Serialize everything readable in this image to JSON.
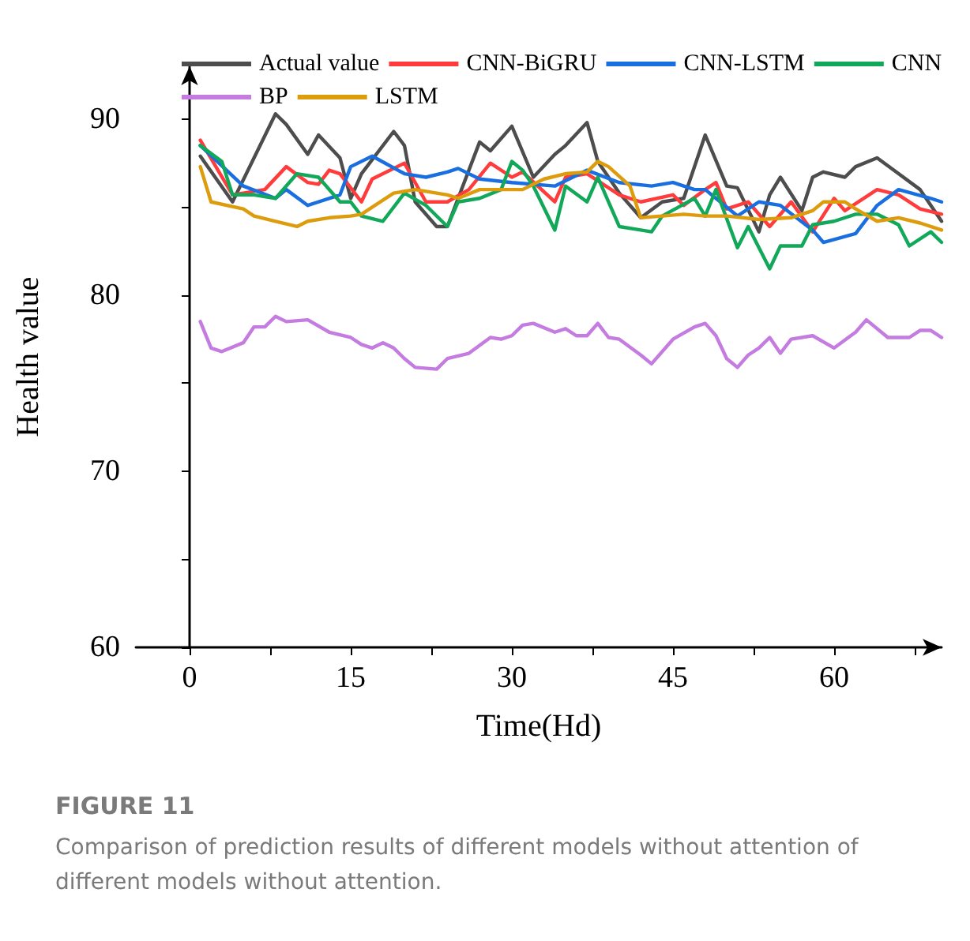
{
  "chart_data": {
    "type": "line",
    "title": "FIGURE 11",
    "subtitle": "Comparison of prediction results of different models without attention of different models without attention.",
    "xlabel": "Time(Hd)",
    "ylabel": "Health value",
    "xlim": [
      -5,
      70
    ],
    "ylim": [
      60,
      93
    ],
    "xticks": [
      0,
      {
        "value": 7.5,
        "label": null
      },
      15,
      {
        "value": 22.5,
        "label": null
      },
      30,
      {
        "value": 37.5,
        "label": null
      },
      45,
      {
        "value": 52.5,
        "label": null
      },
      60,
      {
        "value": 67.5,
        "label": null
      }
    ],
    "yticks": [
      60,
      {
        "value": 65,
        "label": null
      },
      70,
      {
        "value": 75,
        "label": null
      },
      80,
      {
        "value": 85,
        "label": null
      },
      90
    ],
    "grid": false,
    "legend": "top",
    "marker": "none",
    "line_style": "solid",
    "series": [
      {
        "name": "Actual value",
        "color": "#4d4d4d",
        "x": [
          1,
          4,
          8,
          9,
          11,
          12,
          14,
          15,
          16,
          19,
          20,
          21,
          23,
          24,
          27,
          28,
          30,
          32,
          34,
          35,
          37,
          38,
          40,
          42,
          44,
          46,
          48,
          50,
          51,
          53,
          54,
          55,
          57,
          58,
          59,
          61,
          62,
          64,
          66,
          68,
          70
        ],
        "values": [
          87.9,
          85.3,
          90.3,
          89.7,
          88.0,
          89.1,
          87.8,
          85.5,
          86.9,
          89.3,
          88.5,
          85.3,
          83.9,
          83.9,
          88.7,
          88.2,
          89.6,
          86.7,
          88.0,
          88.5,
          89.8,
          87.6,
          85.8,
          84.4,
          85.3,
          85.5,
          89.1,
          86.2,
          86.1,
          83.6,
          85.7,
          86.7,
          84.8,
          86.7,
          87.0,
          86.7,
          87.3,
          87.8,
          86.9,
          86.0,
          84.2
        ]
      },
      {
        "name": "CNN-BiGRU",
        "color": "#ff3b3b",
        "x": [
          1,
          4,
          7,
          9,
          11,
          12,
          13,
          14,
          16,
          17,
          20,
          21,
          22,
          24,
          26,
          28,
          30,
          31,
          34,
          35,
          37,
          40,
          42,
          45,
          46,
          48,
          49,
          50,
          52,
          54,
          56,
          58,
          60,
          61,
          64,
          66,
          68,
          70
        ],
        "values": [
          88.8,
          85.7,
          86.0,
          87.3,
          86.4,
          86.3,
          87.1,
          86.9,
          85.3,
          86.6,
          87.5,
          86.4,
          85.3,
          85.3,
          86.0,
          87.5,
          86.7,
          87.0,
          85.3,
          86.7,
          86.9,
          85.7,
          85.3,
          85.7,
          85.1,
          86.0,
          86.4,
          84.9,
          85.3,
          83.9,
          85.3,
          83.6,
          85.5,
          84.8,
          86.0,
          85.7,
          84.9,
          84.6
        ]
      },
      {
        "name": "CNN-LSTM",
        "color": "#1a6fe0",
        "x": [
          1,
          5,
          8,
          9,
          11,
          14,
          15,
          17,
          20,
          22,
          24,
          25,
          27,
          30,
          34,
          37,
          40,
          43,
          45,
          47,
          48,
          51,
          53,
          55,
          58,
          59,
          62,
          64,
          66,
          69,
          70
        ],
        "values": [
          88.5,
          86.2,
          85.5,
          86.0,
          85.1,
          85.7,
          87.3,
          87.9,
          86.9,
          86.7,
          87.0,
          87.2,
          86.6,
          86.4,
          86.2,
          87.1,
          86.4,
          86.2,
          86.4,
          86.0,
          86.0,
          84.5,
          85.3,
          85.1,
          83.7,
          83.0,
          83.5,
          85.1,
          86.0,
          85.5,
          85.3
        ]
      },
      {
        "name": "CNN",
        "color": "#12a85a",
        "x": [
          1,
          3,
          4,
          6,
          8,
          10,
          12,
          14,
          15,
          16,
          18,
          20,
          22,
          24,
          25,
          27,
          29,
          30,
          31,
          32,
          34,
          35,
          37,
          38,
          40,
          42,
          43,
          44,
          47,
          48,
          49,
          51,
          52,
          54,
          55,
          57,
          58,
          60,
          62,
          64,
          66,
          67,
          69,
          70
        ],
        "values": [
          88.5,
          87.6,
          85.7,
          85.7,
          85.5,
          86.9,
          86.7,
          85.3,
          85.3,
          84.5,
          84.2,
          85.8,
          85.1,
          83.9,
          85.3,
          85.5,
          86.0,
          87.6,
          87.1,
          86.2,
          83.7,
          86.2,
          85.3,
          86.7,
          83.9,
          83.7,
          83.6,
          84.5,
          85.5,
          84.5,
          86.0,
          82.7,
          83.9,
          81.5,
          82.8,
          82.8,
          84.0,
          84.2,
          84.6,
          84.6,
          84.0,
          82.8,
          83.6,
          83.0
        ]
      },
      {
        "name": "BP",
        "color": "#c47ce0",
        "x": [
          1,
          2,
          3,
          5,
          6,
          7,
          8,
          9,
          11,
          13,
          15,
          16,
          17,
          18,
          19,
          20,
          21,
          23,
          24,
          26,
          28,
          29,
          30,
          31,
          32,
          34,
          35,
          36,
          37,
          38,
          39,
          40,
          42,
          43,
          45,
          47,
          48,
          49,
          50,
          51,
          52,
          53,
          54,
          55,
          56,
          57,
          58,
          60,
          62,
          63,
          65,
          67,
          68,
          69,
          70
        ],
        "values": [
          78.5,
          77.0,
          76.8,
          77.3,
          78.2,
          78.2,
          78.8,
          78.5,
          78.6,
          77.9,
          77.6,
          77.2,
          77.0,
          77.3,
          77.0,
          76.4,
          75.9,
          75.8,
          76.4,
          76.7,
          77.6,
          77.5,
          77.7,
          78.3,
          78.4,
          77.9,
          78.1,
          77.7,
          77.7,
          78.4,
          77.6,
          77.5,
          76.6,
          76.1,
          77.5,
          78.2,
          78.4,
          77.7,
          76.4,
          75.9,
          76.6,
          77.0,
          77.6,
          76.7,
          77.5,
          77.6,
          77.7,
          77.0,
          77.9,
          78.6,
          77.6,
          77.6,
          78.0,
          78.0,
          77.6
        ]
      },
      {
        "name": "LSTM",
        "color": "#dc9c0c",
        "x": [
          1,
          2,
          5,
          6,
          8,
          10,
          11,
          13,
          15,
          16,
          19,
          21,
          24,
          25,
          27,
          31,
          33,
          35,
          37,
          38,
          39,
          41,
          42,
          44,
          46,
          48,
          50,
          53,
          56,
          58,
          59,
          61,
          62,
          64,
          66,
          68,
          70
        ],
        "values": [
          87.3,
          85.3,
          84.9,
          84.5,
          84.2,
          83.9,
          84.2,
          84.4,
          84.5,
          84.6,
          85.8,
          86.0,
          85.7,
          85.5,
          86.0,
          86.0,
          86.6,
          86.9,
          87.0,
          87.6,
          87.3,
          86.2,
          84.4,
          84.5,
          84.6,
          84.5,
          84.5,
          84.3,
          84.4,
          84.8,
          85.3,
          85.3,
          84.9,
          84.2,
          84.4,
          84.1,
          83.7
        ]
      }
    ]
  }
}
